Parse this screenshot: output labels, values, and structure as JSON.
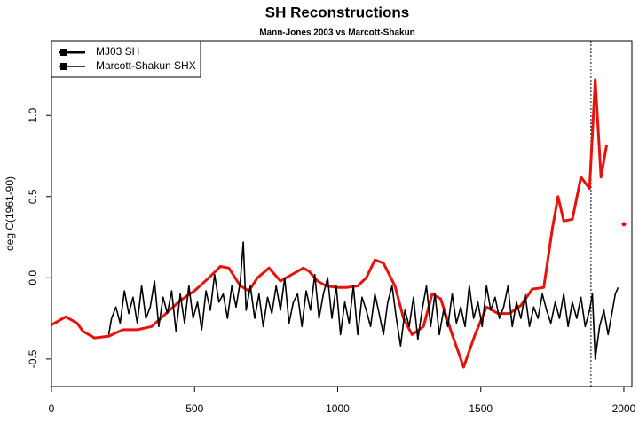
{
  "chart_data": {
    "type": "line",
    "title": "SH Reconstructions",
    "subtitle": "Mann-Jones 2003 vs Marcott-Shakun",
    "y_label": "deg C(1961-90)",
    "xlim": [
      0,
      2028
    ],
    "ylim": [
      -0.67,
      1.46
    ],
    "xticks": [
      0,
      500,
      1000,
      1500,
      2000
    ],
    "yticks": [
      -0.5,
      {
        "value": 0,
        "label": "0.0"
      },
      0.5,
      {
        "value": 1,
        "label": "1.0"
      }
    ],
    "grid": false,
    "legend": "top-left",
    "legend_color": "#000000",
    "vline": 1885,
    "series": [
      {
        "name": "MJ03 SH",
        "color": "#e8120c",
        "width": 3,
        "x": [
          0,
          50,
          90,
          110,
          150,
          200,
          250,
          300,
          350,
          400,
          450,
          500,
          550,
          590,
          620,
          660,
          690,
          720,
          760,
          800,
          850,
          880,
          900,
          930,
          960,
          1000,
          1030,
          1070,
          1100,
          1130,
          1160,
          1200,
          1230,
          1260,
          1300,
          1330,
          1360,
          1400,
          1440,
          1480,
          1520,
          1560,
          1600,
          1640,
          1680,
          1720,
          1750,
          1770,
          1790,
          1820,
          1850,
          1880,
          1900,
          1920,
          1940,
          1970,
          2000
        ],
        "values": [
          -0.29,
          -0.24,
          -0.28,
          -0.33,
          -0.37,
          -0.36,
          -0.32,
          -0.32,
          -0.3,
          -0.22,
          -0.14,
          -0.08,
          0.0,
          0.07,
          0.06,
          -0.05,
          -0.08,
          0.0,
          0.06,
          -0.02,
          0.03,
          0.06,
          0.04,
          -0.02,
          -0.05,
          -0.06,
          -0.06,
          -0.05,
          0.0,
          0.11,
          0.09,
          -0.05,
          -0.25,
          -0.35,
          -0.3,
          -0.1,
          -0.13,
          -0.35,
          -0.55,
          -0.35,
          -0.18,
          -0.22,
          -0.22,
          -0.17,
          -0.07,
          -0.06,
          0.3,
          0.5,
          0.35,
          0.36,
          0.62,
          0.55,
          1.22,
          0.62,
          0.82,
          null,
          0.33
        ]
      },
      {
        "name": "Marcott-Shakun SHX",
        "color": "#000000",
        "width": 1.6,
        "x": [
          200,
          210,
          225,
          240,
          255,
          270,
          285,
          300,
          315,
          330,
          345,
          360,
          375,
          390,
          405,
          420,
          435,
          450,
          465,
          480,
          495,
          510,
          525,
          540,
          555,
          570,
          585,
          600,
          615,
          630,
          645,
          660,
          670,
          680,
          695,
          710,
          725,
          740,
          755,
          770,
          785,
          800,
          815,
          830,
          845,
          860,
          875,
          890,
          905,
          920,
          935,
          950,
          965,
          980,
          995,
          1010,
          1025,
          1040,
          1055,
          1070,
          1085,
          1100,
          1115,
          1130,
          1145,
          1160,
          1175,
          1190,
          1205,
          1220,
          1235,
          1250,
          1265,
          1280,
          1295,
          1310,
          1325,
          1340,
          1355,
          1370,
          1385,
          1400,
          1415,
          1430,
          1445,
          1460,
          1475,
          1490,
          1505,
          1520,
          1535,
          1550,
          1565,
          1580,
          1595,
          1610,
          1625,
          1640,
          1655,
          1670,
          1685,
          1700,
          1715,
          1730,
          1745,
          1760,
          1775,
          1790,
          1805,
          1820,
          1835,
          1850,
          1865,
          1880,
          1890,
          1900,
          1915,
          1930,
          1945,
          1960,
          1970,
          1980
        ],
        "values": [
          -0.35,
          -0.25,
          -0.18,
          -0.28,
          -0.08,
          -0.22,
          -0.12,
          -0.28,
          -0.05,
          -0.25,
          -0.18,
          -0.02,
          -0.3,
          -0.12,
          -0.22,
          -0.08,
          -0.33,
          -0.1,
          -0.28,
          -0.05,
          -0.25,
          -0.15,
          -0.32,
          -0.08,
          -0.2,
          0.02,
          -0.15,
          -0.1,
          -0.25,
          -0.05,
          -0.18,
          -0.02,
          0.22,
          -0.2,
          -0.05,
          -0.25,
          -0.1,
          -0.3,
          -0.12,
          -0.22,
          -0.05,
          -0.2,
          0.0,
          -0.28,
          -0.15,
          -0.1,
          -0.3,
          -0.08,
          -0.2,
          0.02,
          -0.25,
          -0.1,
          0.0,
          -0.25,
          -0.05,
          -0.35,
          -0.15,
          -0.28,
          -0.05,
          -0.35,
          -0.12,
          -0.2,
          -0.3,
          -0.1,
          -0.22,
          -0.35,
          -0.15,
          -0.05,
          -0.25,
          -0.42,
          -0.2,
          -0.3,
          -0.12,
          -0.38,
          -0.2,
          -0.05,
          -0.3,
          -0.1,
          -0.35,
          -0.2,
          -0.3,
          -0.1,
          -0.28,
          -0.18,
          -0.3,
          -0.05,
          -0.25,
          -0.15,
          -0.3,
          -0.05,
          -0.2,
          -0.12,
          -0.25,
          -0.18,
          -0.05,
          -0.3,
          -0.15,
          -0.25,
          -0.1,
          -0.3,
          -0.18,
          -0.25,
          -0.1,
          -0.2,
          -0.28,
          -0.15,
          -0.25,
          -0.1,
          -0.3,
          -0.15,
          -0.25,
          -0.12,
          -0.3,
          -0.2,
          -0.1,
          -0.5,
          -0.3,
          -0.2,
          -0.35,
          -0.2,
          -0.1,
          -0.06
        ]
      }
    ]
  }
}
